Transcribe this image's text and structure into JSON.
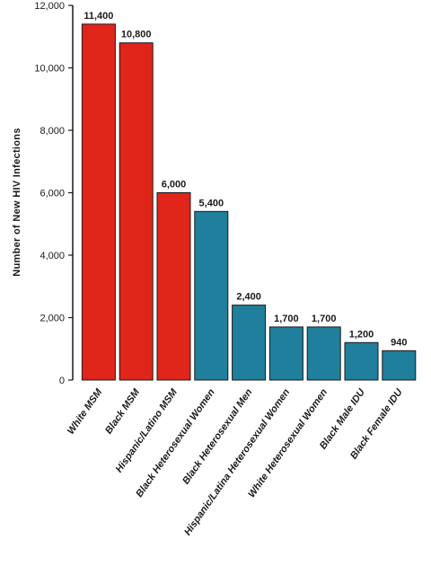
{
  "chart_data": {
    "type": "bar",
    "title": "",
    "xlabel": "",
    "ylabel": "Number of New HIV Infections",
    "ylim": [
      0,
      12000
    ],
    "yticks": [
      0,
      2000,
      4000,
      6000,
      8000,
      10000,
      12000
    ],
    "ytick_labels": [
      "0",
      "2,000",
      "4,000",
      "6,000",
      "8,000",
      "10,000",
      "12,000"
    ],
    "categories": [
      "White MSM",
      "Black MSM",
      "Hispanic/Latino MSM",
      "Black Heterosexual Women",
      "Black Heterosexual Men",
      "Hispanic/Latina Heterosexual Women",
      "White Heterosexual Women",
      "Black Male IDU",
      "Black Female IDU"
    ],
    "values": [
      11400,
      10800,
      6000,
      5400,
      2400,
      1700,
      1700,
      1200,
      940
    ],
    "value_labels": [
      "11,400",
      "10,800",
      "6,000",
      "5,400",
      "2,400",
      "1,700",
      "1,700",
      "1,200",
      "940"
    ],
    "bar_colors": [
      "#e0251b",
      "#e0251b",
      "#e0251b",
      "#1f7f9c",
      "#1f7f9c",
      "#1f7f9c",
      "#1f7f9c",
      "#1f7f9c",
      "#1f7f9c"
    ],
    "grid": false,
    "legend": "none"
  },
  "colors": {
    "msm": "#e0251b",
    "other": "#1f7f9c",
    "axis": "#1a1a1a"
  }
}
